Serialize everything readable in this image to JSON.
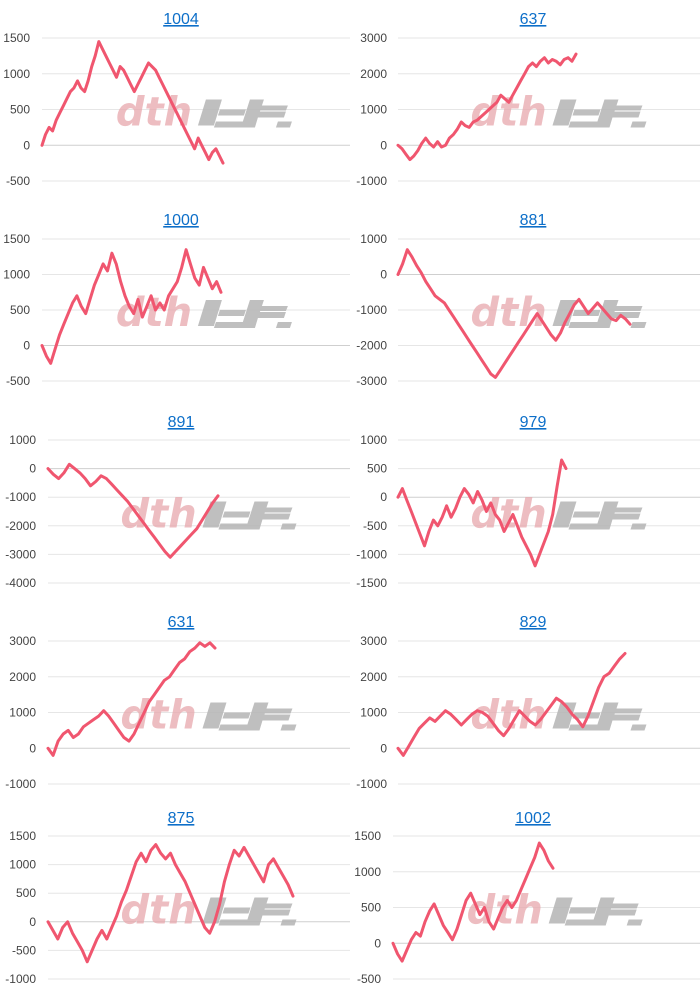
{
  "colors": {
    "line": "#f0566f",
    "title": "#0d6fc9",
    "grid": "#e6e6e6"
  },
  "chart_data": [
    {
      "type": "line",
      "title": "1004",
      "yticks": [
        1500,
        1000,
        500,
        0,
        -500
      ],
      "ylim": [
        -500,
        1500
      ],
      "values": [
        0,
        150,
        250,
        200,
        350,
        450,
        550,
        650,
        750,
        800,
        900,
        800,
        750,
        900,
        1100,
        1250,
        1450,
        1350,
        1250,
        1150,
        1050,
        950,
        1100,
        1050,
        950,
        850,
        750,
        850,
        950,
        1050,
        1150,
        1100,
        1050,
        950,
        850,
        750,
        650,
        550,
        450,
        350,
        250,
        150,
        50,
        -50,
        100,
        0,
        -100,
        -200,
        -100,
        -50,
        -150,
        -250
      ]
    },
    {
      "type": "line",
      "title": "637",
      "yticks": [
        3000,
        2000,
        1000,
        0,
        -1000
      ],
      "ylim": [
        -1000,
        3000
      ],
      "values": [
        0,
        -100,
        -250,
        -400,
        -300,
        -150,
        50,
        200,
        50,
        -50,
        100,
        -50,
        0,
        200,
        300,
        450,
        650,
        550,
        500,
        650,
        700,
        800,
        900,
        1000,
        1100,
        1200,
        1400,
        1300,
        1200,
        1400,
        1600,
        1800,
        2000,
        2200,
        2300,
        2200,
        2350,
        2450,
        2300,
        2400,
        2350,
        2250,
        2400,
        2450,
        2350,
        2550
      ]
    },
    {
      "type": "line",
      "title": "1000",
      "yticks": [
        1500,
        1000,
        500,
        0,
        -500
      ],
      "ylim": [
        -500,
        1500
      ],
      "values": [
        0,
        -150,
        -250,
        -50,
        150,
        300,
        450,
        600,
        700,
        550,
        450,
        650,
        850,
        1000,
        1150,
        1050,
        1300,
        1150,
        900,
        700,
        550,
        450,
        650,
        400,
        550,
        700,
        500,
        600,
        500,
        700,
        800,
        900,
        1100,
        1350,
        1150,
        950,
        850,
        1100,
        950,
        800,
        900,
        750
      ]
    },
    {
      "type": "line",
      "title": "881",
      "yticks": [
        1000,
        0,
        -1000,
        -2000,
        -3000
      ],
      "ylim": [
        -3000,
        1000
      ],
      "values": [
        0,
        300,
        700,
        500,
        250,
        50,
        -200,
        -400,
        -600,
        -700,
        -800,
        -1000,
        -1200,
        -1400,
        -1600,
        -1800,
        -2000,
        -2200,
        -2400,
        -2600,
        -2800,
        -2900,
        -2700,
        -2500,
        -2300,
        -2100,
        -1900,
        -1700,
        -1500,
        -1300,
        -1100,
        -1300,
        -1500,
        -1700,
        -1850,
        -1650,
        -1350,
        -1100,
        -850,
        -700,
        -900,
        -1100,
        -950,
        -800,
        -950,
        -1100,
        -1250,
        -1300,
        -1150,
        -1250,
        -1400
      ]
    },
    {
      "type": "line",
      "title": "891",
      "yticks": [
        1000,
        0,
        -1000,
        -2000,
        -3000,
        -4000
      ],
      "ylim": [
        -4000,
        1000
      ],
      "values": [
        0,
        -200,
        -350,
        -150,
        150,
        0,
        -150,
        -350,
        -600,
        -450,
        -250,
        -350,
        -550,
        -750,
        -950,
        -1150,
        -1400,
        -1650,
        -1900,
        -2150,
        -2400,
        -2650,
        -2900,
        -3100,
        -2900,
        -2700,
        -2500,
        -2300,
        -2100,
        -1800,
        -1500,
        -1200,
        -950
      ]
    },
    {
      "type": "line",
      "title": "979",
      "yticks": [
        1000,
        500,
        0,
        -500,
        -1000,
        -1500
      ],
      "ylim": [
        -1500,
        1000
      ],
      "values": [
        0,
        150,
        -50,
        -250,
        -450,
        -650,
        -850,
        -600,
        -400,
        -500,
        -350,
        -150,
        -350,
        -200,
        0,
        150,
        50,
        -100,
        100,
        -50,
        -250,
        -100,
        -300,
        -400,
        -600,
        -450,
        -300,
        -500,
        -700,
        -850,
        -1000,
        -1200,
        -1000,
        -800,
        -600,
        -300,
        200,
        650,
        500
      ]
    },
    {
      "type": "line",
      "title": "631",
      "yticks": [
        3000,
        2000,
        1000,
        0,
        -1000
      ],
      "ylim": [
        -1000,
        3000
      ],
      "values": [
        0,
        -200,
        200,
        400,
        500,
        300,
        400,
        600,
        700,
        800,
        900,
        1050,
        900,
        700,
        500,
        300,
        200,
        400,
        700,
        1000,
        1300,
        1500,
        1700,
        1900,
        2000,
        2200,
        2400,
        2500,
        2700,
        2800,
        2950,
        2850,
        2950,
        2800
      ]
    },
    {
      "type": "line",
      "title": "829",
      "yticks": [
        3000,
        2000,
        1000,
        0,
        -1000
      ],
      "ylim": [
        -1000,
        3000
      ],
      "values": [
        0,
        -200,
        50,
        300,
        550,
        700,
        850,
        750,
        900,
        1050,
        950,
        800,
        650,
        800,
        950,
        1050,
        1000,
        900,
        700,
        500,
        350,
        550,
        800,
        1050,
        900,
        750,
        650,
        800,
        1000,
        1200,
        1400,
        1300,
        1150,
        950,
        800,
        600,
        900,
        1300,
        1700,
        2000,
        2100,
        2300,
        2500,
        2650
      ]
    },
    {
      "type": "line",
      "title": "875",
      "yticks": [
        1500,
        1000,
        500,
        0,
        -500,
        -1000
      ],
      "ylim": [
        -1000,
        1500
      ],
      "values": [
        0,
        -150,
        -300,
        -100,
        0,
        -200,
        -350,
        -500,
        -700,
        -500,
        -300,
        -150,
        -300,
        -100,
        100,
        350,
        550,
        800,
        1050,
        1200,
        1050,
        1250,
        1350,
        1200,
        1100,
        1200,
        1000,
        850,
        700,
        500,
        300,
        100,
        -100,
        -200,
        0,
        300,
        700,
        1000,
        1250,
        1150,
        1300,
        1150,
        1000,
        850,
        700,
        1000,
        1100,
        950,
        800,
        650,
        450
      ]
    },
    {
      "type": "line",
      "title": "1002",
      "yticks": [
        1500,
        1000,
        500,
        0,
        -500
      ],
      "ylim": [
        -500,
        1500
      ],
      "values": [
        0,
        -150,
        -250,
        -100,
        50,
        150,
        100,
        300,
        450,
        550,
        400,
        250,
        150,
        50,
        200,
        400,
        600,
        700,
        550,
        400,
        500,
        300,
        200,
        350,
        500,
        600,
        500,
        600,
        750,
        900,
        1050,
        1200,
        1400,
        1300,
        1150,
        1050
      ]
    }
  ]
}
